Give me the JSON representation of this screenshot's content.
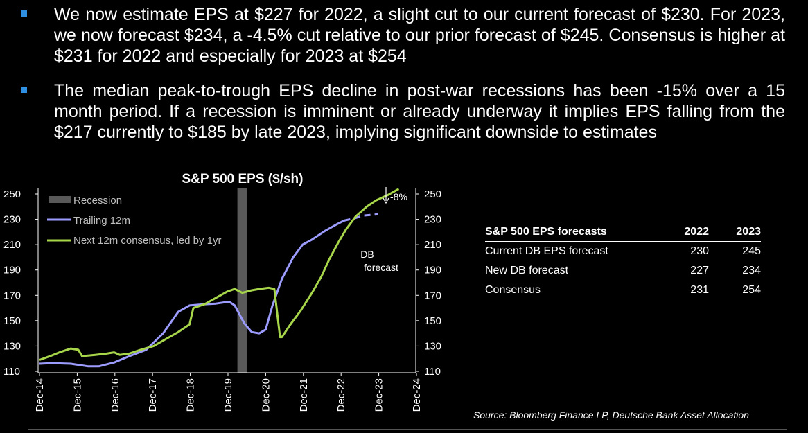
{
  "bullets": [
    "We now estimate EPS at $227 for 2022, a slight cut to our current forecast of $230. For 2023, we now forecast $234, a -4.5% cut relative to our prior forecast of $245. Consensus is higher at $231 for 2022 and especially for 2023 at $254",
    "The median peak-to-trough EPS decline in post-war recessions has been -15% over a 15 month period. If a recession is imminent or already underway it implies EPS falling from the $217 currently to $185 by late 2023, implying significant downside to estimates"
  ],
  "colors": {
    "background": "#000000",
    "bullet": "#2f8fe0",
    "trailing": "#9c9cff",
    "consensus": "#a8d64a",
    "recession": "#595959"
  },
  "chart_data": {
    "type": "line",
    "title": "S&P 500 EPS ($/sh)",
    "xlabel": "",
    "ylabel": "",
    "ylim": [
      110,
      255
    ],
    "yticks": [
      110,
      130,
      150,
      170,
      190,
      210,
      230,
      250
    ],
    "x_ticks": [
      "Dec-14",
      "Dec-15",
      "Dec-16",
      "Dec-17",
      "Dec-18",
      "Dec-19",
      "Dec-20",
      "Dec-21",
      "Dec-22",
      "Dec-23",
      "Dec-24"
    ],
    "xlim": [
      2014.9,
      2024.95
    ],
    "legend": [
      "Recession",
      "Trailing 12m",
      "Next 12m consensus, led by 1yr"
    ],
    "recession": [
      2020.17,
      2020.42
    ],
    "series": [
      {
        "name": "Trailing 12m",
        "style": "solid",
        "points": [
          [
            2014.92,
            116
          ],
          [
            2015.25,
            116.5
          ],
          [
            2015.75,
            116
          ],
          [
            2016.2,
            114
          ],
          [
            2016.5,
            114
          ],
          [
            2016.9,
            117
          ],
          [
            2017.3,
            122
          ],
          [
            2017.75,
            127
          ],
          [
            2018.2,
            140
          ],
          [
            2018.6,
            157
          ],
          [
            2018.9,
            162
          ],
          [
            2019.3,
            163
          ],
          [
            2019.6,
            163.5
          ],
          [
            2019.95,
            165
          ],
          [
            2020.1,
            162
          ],
          [
            2020.35,
            148
          ],
          [
            2020.55,
            141
          ],
          [
            2020.75,
            140
          ],
          [
            2020.92,
            143
          ],
          [
            2021.1,
            162
          ],
          [
            2021.35,
            183
          ],
          [
            2021.65,
            200
          ],
          [
            2021.9,
            210
          ],
          [
            2022.15,
            214
          ],
          [
            2022.5,
            221
          ],
          [
            2022.8,
            226
          ],
          [
            2023.0,
            229
          ]
        ]
      },
      {
        "name": "DB forecast",
        "style": "dashed",
        "points": [
          [
            2023.0,
            229
          ],
          [
            2023.3,
            231
          ],
          [
            2023.5,
            233
          ],
          [
            2023.9,
            234
          ]
        ]
      },
      {
        "name": "Next 12m consensus, led by 1yr",
        "style": "solid",
        "points": [
          [
            2014.92,
            119
          ],
          [
            2015.2,
            122
          ],
          [
            2015.45,
            125
          ],
          [
            2015.75,
            128
          ],
          [
            2015.95,
            127
          ],
          [
            2016.05,
            122
          ],
          [
            2016.4,
            123
          ],
          [
            2016.7,
            124
          ],
          [
            2016.9,
            125
          ],
          [
            2017.05,
            123
          ],
          [
            2017.3,
            124
          ],
          [
            2017.6,
            127
          ],
          [
            2017.95,
            130
          ],
          [
            2018.3,
            136
          ],
          [
            2018.6,
            141
          ],
          [
            2018.9,
            147
          ],
          [
            2019.0,
            160
          ],
          [
            2019.3,
            163
          ],
          [
            2019.6,
            168
          ],
          [
            2019.9,
            173
          ],
          [
            2020.1,
            175
          ],
          [
            2020.3,
            172
          ],
          [
            2020.55,
            174
          ],
          [
            2020.75,
            175
          ],
          [
            2021.0,
            176
          ],
          [
            2021.15,
            175
          ],
          [
            2021.3,
            137
          ],
          [
            2021.35,
            137
          ],
          [
            2021.55,
            146
          ],
          [
            2021.85,
            158
          ],
          [
            2022.15,
            172
          ],
          [
            2022.4,
            185
          ],
          [
            2022.6,
            198
          ],
          [
            2022.85,
            212
          ],
          [
            2023.05,
            222
          ],
          [
            2023.3,
            232
          ],
          [
            2023.6,
            240
          ],
          [
            2023.85,
            245
          ],
          [
            2024.15,
            249
          ],
          [
            2024.45,
            254
          ]
        ]
      }
    ],
    "annotations": [
      "-8%",
      "DB",
      "forecast"
    ]
  },
  "table": {
    "title": "S&P 500 EPS forecasts",
    "columns": [
      "2022",
      "2023"
    ],
    "rows": [
      {
        "label": "Current DB EPS forecast",
        "v2022": "230",
        "v2023": "245"
      },
      {
        "label": "New DB forecast",
        "v2022": "227",
        "v2023": "234"
      },
      {
        "label": "Consensus",
        "v2022": "231",
        "v2023": "254"
      }
    ]
  },
  "source": "Source: Bloomberg Finance LP, Deutsche Bank Asset Allocation"
}
